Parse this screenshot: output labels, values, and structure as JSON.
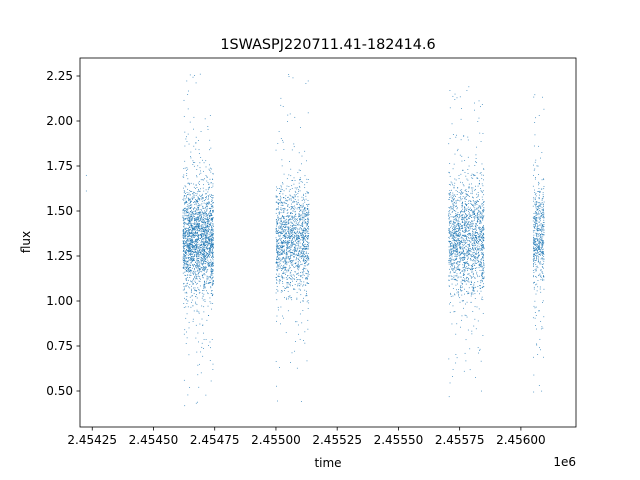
{
  "chart_data": {
    "type": "scatter",
    "title": "1SWASPJ220711.41-182414.6",
    "xlabel": "time",
    "ylabel": "flux",
    "x_offset_label": "1e6",
    "xlim": [
      2.4542,
      2.456225
    ],
    "ylim": [
      0.3,
      2.35
    ],
    "x_ticks": [
      2.45425,
      2.4545,
      2.45475,
      2.455,
      2.45525,
      2.4555,
      2.45575,
      2.456
    ],
    "x_tick_labels": [
      "2.45425",
      "2.45450",
      "2.45475",
      "2.45500",
      "2.45525",
      "2.45550",
      "2.45575",
      "2.45600"
    ],
    "y_ticks": [
      0.5,
      0.75,
      1.0,
      1.25,
      1.5,
      1.75,
      2.0,
      2.25
    ],
    "y_tick_labels": [
      "0.50",
      "0.75",
      "1.00",
      "1.25",
      "1.50",
      "1.75",
      "2.00",
      "2.25"
    ],
    "grid": false,
    "marker_color": "#1f77b4",
    "series": [
      {
        "clusters": [
          {
            "x_range": [
              2.454225,
              2.454226
            ],
            "center": 1.42,
            "spread": 0.2,
            "count": 2
          },
          {
            "x_range": [
              2.45462,
              2.454745
            ],
            "center": 1.34,
            "spread": 0.14,
            "count": 2200,
            "min": 0.4,
            "max": 2.27
          },
          {
            "x_range": [
              2.455,
              2.455135
            ],
            "center": 1.34,
            "spread": 0.14,
            "count": 1500,
            "min": 0.43,
            "max": 2.27
          },
          {
            "x_range": [
              2.455705,
              2.45585
            ],
            "center": 1.34,
            "spread": 0.15,
            "count": 1700,
            "min": 0.41,
            "max": 2.2
          },
          {
            "x_range": [
              2.45605,
              2.456095
            ],
            "center": 1.36,
            "spread": 0.14,
            "count": 550,
            "min": 0.48,
            "max": 2.19
          }
        ]
      }
    ]
  }
}
